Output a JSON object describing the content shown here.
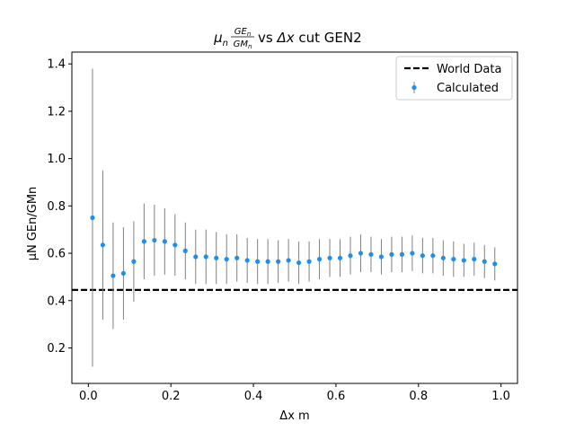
{
  "chart_data": {
    "type": "scatter",
    "title": {
      "mu": "μ",
      "mu_sub": "n",
      "num": "GE",
      "num_sub": "n",
      "den": "GM",
      "den_sub": "n",
      "vs": " vs ",
      "dx": "Δx",
      "rest": " cut GEN2"
    },
    "xlabel": "Δx m",
    "ylabel": "μN GEn/GMn",
    "xlim": [
      -0.04,
      1.04
    ],
    "ylim": [
      0.05,
      1.45
    ],
    "xticks": [
      0.0,
      0.2,
      0.4,
      0.6,
      0.8,
      1.0
    ],
    "xtick_labels": [
      "0.0",
      "0.2",
      "0.4",
      "0.6",
      "0.8",
      "1.0"
    ],
    "yticks": [
      0.2,
      0.4,
      0.6,
      0.8,
      1.0,
      1.2,
      1.4
    ],
    "ytick_labels": [
      "0.2",
      "0.4",
      "0.6",
      "0.8",
      "1.0",
      "1.2",
      "1.4"
    ],
    "reference_line": {
      "name": "World Data",
      "y": 0.445,
      "style": "dashed",
      "color": "#000000"
    },
    "legend": {
      "position": "upper right",
      "entries": [
        "World Data",
        "Calculated"
      ]
    },
    "series": [
      {
        "name": "Calculated",
        "color": "#1f8ef1",
        "error_color": "#808080",
        "x": [
          0.01,
          0.035,
          0.06,
          0.085,
          0.11,
          0.135,
          0.16,
          0.185,
          0.21,
          0.235,
          0.26,
          0.285,
          0.31,
          0.335,
          0.36,
          0.385,
          0.41,
          0.435,
          0.46,
          0.485,
          0.51,
          0.535,
          0.56,
          0.585,
          0.61,
          0.635,
          0.66,
          0.685,
          0.71,
          0.735,
          0.76,
          0.785,
          0.81,
          0.835,
          0.86,
          0.885,
          0.91,
          0.935,
          0.96,
          0.985
        ],
        "y": [
          0.75,
          0.635,
          0.505,
          0.515,
          0.565,
          0.65,
          0.655,
          0.65,
          0.635,
          0.61,
          0.585,
          0.585,
          0.58,
          0.575,
          0.58,
          0.57,
          0.565,
          0.565,
          0.565,
          0.57,
          0.56,
          0.565,
          0.575,
          0.58,
          0.58,
          0.59,
          0.6,
          0.595,
          0.585,
          0.595,
          0.595,
          0.6,
          0.59,
          0.59,
          0.58,
          0.575,
          0.57,
          0.575,
          0.565,
          0.555
        ],
        "yerr": [
          0.63,
          0.315,
          0.225,
          0.195,
          0.17,
          0.16,
          0.15,
          0.14,
          0.13,
          0.12,
          0.115,
          0.115,
          0.11,
          0.105,
          0.1,
          0.095,
          0.095,
          0.095,
          0.09,
          0.09,
          0.09,
          0.085,
          0.085,
          0.08,
          0.08,
          0.08,
          0.08,
          0.075,
          0.075,
          0.075,
          0.075,
          0.075,
          0.075,
          0.075,
          0.075,
          0.075,
          0.07,
          0.07,
          0.07,
          0.07
        ]
      }
    ]
  }
}
